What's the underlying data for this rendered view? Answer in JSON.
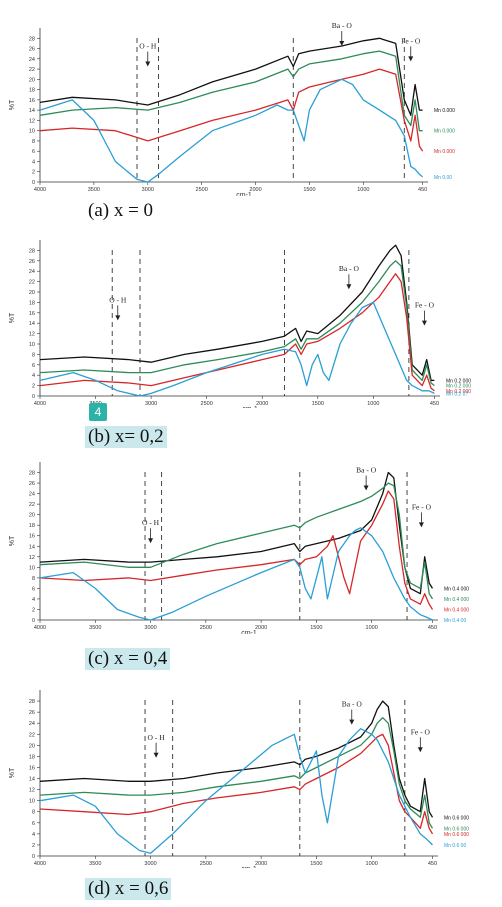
{
  "chart_data": [
    {
      "type": "line",
      "caption": "(a) x = 0",
      "caption_highlight": false,
      "ylabel": "%T",
      "xlabel": "cm-1",
      "xlim": [
        4000,
        400
      ],
      "ylim": [
        0,
        30
      ],
      "yticks": [
        0,
        2,
        4,
        6,
        8,
        10,
        12,
        14,
        16,
        18,
        20,
        22,
        24,
        26,
        28
      ],
      "xticks": [
        4000,
        3500,
        3000,
        2500,
        2000,
        1500,
        1000,
        450
      ],
      "annotations": [
        {
          "text": "O - H",
          "x": 3000,
          "y": 26
        },
        {
          "text": "Ba - O",
          "x": 1200,
          "y": 30
        },
        {
          "text": "Fe - O",
          "x": 560,
          "y": 27
        }
      ],
      "dashed_lines": [
        3100,
        2900,
        1650,
        620
      ],
      "series": [
        {
          "name": "Mn 0.000",
          "color": "#111111",
          "x": [
            4000,
            3700,
            3300,
            3000,
            2700,
            2400,
            2000,
            1700,
            1650,
            1600,
            1500,
            1200,
            1000,
            850,
            700,
            620,
            560,
            520,
            480,
            450
          ],
          "y": [
            15.5,
            16.5,
            16,
            15,
            17,
            19.5,
            22,
            24.5,
            22.5,
            25,
            25.5,
            26.5,
            27.5,
            28,
            27,
            16,
            13,
            19,
            14,
            14
          ]
        },
        {
          "name": "Mn 0.000",
          "color": "#2e8b57",
          "x": [
            4000,
            3700,
            3300,
            3000,
            2700,
            2400,
            2000,
            1700,
            1650,
            1600,
            1500,
            1200,
            1000,
            850,
            700,
            620,
            560,
            520,
            480,
            450
          ],
          "y": [
            13,
            14,
            14.5,
            14,
            15.5,
            17.5,
            19.5,
            22,
            20.5,
            22,
            23,
            24,
            25,
            25.5,
            24.5,
            13,
            11,
            16,
            10,
            10
          ]
        },
        {
          "name": "Mn 0.000",
          "color": "#d62728",
          "x": [
            4000,
            3700,
            3300,
            3000,
            2700,
            2400,
            2000,
            1700,
            1650,
            1600,
            1500,
            1200,
            1000,
            850,
            700,
            620,
            560,
            520,
            480,
            450
          ],
          "y": [
            10,
            10.5,
            10,
            8,
            10,
            12,
            14,
            16,
            14,
            17.5,
            18.5,
            20,
            21,
            22,
            21,
            12,
            8,
            13,
            7,
            6
          ]
        },
        {
          "name": "Mn 0.00",
          "color": "#2a9fd6",
          "x": [
            4000,
            3700,
            3500,
            3300,
            3100,
            3000,
            2900,
            2700,
            2400,
            2000,
            1800,
            1700,
            1650,
            1600,
            1550,
            1500,
            1400,
            1200,
            1100,
            1000,
            850,
            700,
            620,
            560,
            520,
            480,
            450
          ],
          "y": [
            14,
            16,
            12,
            4,
            0.5,
            0,
            1.5,
            5,
            10,
            13,
            15,
            14,
            14,
            11,
            8,
            14,
            18,
            20,
            19,
            16,
            14,
            12,
            9,
            3,
            2.5,
            1.5,
            1
          ]
        }
      ]
    },
    {
      "type": "line",
      "caption": "(b) x= 0,2",
      "caption_highlight": true,
      "badge": "4",
      "ylabel": "%T",
      "xlabel": "cm-1",
      "xlim": [
        4000,
        400
      ],
      "ylim": [
        0,
        30
      ],
      "yticks": [
        0,
        2,
        4,
        6,
        8,
        10,
        12,
        14,
        16,
        18,
        20,
        22,
        24,
        26,
        28
      ],
      "xticks": [
        4000,
        3500,
        3000,
        2500,
        2000,
        1500,
        1000,
        450
      ],
      "annotations": [
        {
          "text": "O - H",
          "x": 3300,
          "y": 18
        },
        {
          "text": "Ba - O",
          "x": 1220,
          "y": 24
        },
        {
          "text": "Fe - O",
          "x": 540,
          "y": 17
        }
      ],
      "dashed_lines": [
        3350,
        3100,
        1800,
        680
      ],
      "series": [
        {
          "name": "Mn 0.2 000",
          "color": "#111111",
          "x": [
            4000,
            3600,
            3200,
            3000,
            2700,
            2400,
            2000,
            1800,
            1700,
            1650,
            1600,
            1500,
            1300,
            1100,
            950,
            850,
            800,
            750,
            700,
            650,
            560,
            520,
            480,
            450
          ],
          "y": [
            7,
            7.5,
            7,
            6.5,
            8,
            9,
            10.5,
            11.5,
            13,
            10.5,
            12.5,
            12,
            15.5,
            20,
            25,
            28,
            29,
            27,
            18,
            6,
            4,
            7,
            3,
            3
          ]
        },
        {
          "name": "Mn 0.2 000",
          "color": "#2e8b57",
          "x": [
            4000,
            3600,
            3200,
            3000,
            2700,
            2400,
            2000,
            1800,
            1700,
            1650,
            1600,
            1500,
            1300,
            1100,
            950,
            850,
            800,
            750,
            700,
            650,
            560,
            520,
            480,
            450
          ],
          "y": [
            4.5,
            5,
            4.5,
            4.5,
            6,
            7,
            8.5,
            9.5,
            11,
            9,
            11,
            11,
            14,
            18,
            22,
            25,
            26,
            25,
            17,
            5,
            3,
            6,
            2.5,
            2
          ]
        },
        {
          "name": "Mn 0.2 000",
          "color": "#d62728",
          "x": [
            4000,
            3600,
            3200,
            3000,
            2700,
            2400,
            2000,
            1800,
            1700,
            1650,
            1600,
            1500,
            1300,
            1100,
            950,
            850,
            800,
            750,
            700,
            650,
            560,
            520,
            480,
            450
          ],
          "y": [
            2,
            3,
            2.5,
            2,
            3.5,
            5,
            7,
            8,
            10,
            8,
            10,
            10.5,
            13,
            16,
            19,
            22,
            23.5,
            22,
            15,
            4,
            2,
            4,
            1.5,
            1
          ]
        },
        {
          "name": "Mn 0.2 0?",
          "color": "#2a9fd6",
          "x": [
            4000,
            3700,
            3500,
            3300,
            3100,
            3000,
            2800,
            2500,
            2000,
            1800,
            1700,
            1650,
            1600,
            1550,
            1500,
            1450,
            1400,
            1300,
            1200,
            1100,
            1000,
            900,
            800,
            750,
            700,
            650,
            560,
            500,
            450
          ],
          "y": [
            3,
            4.5,
            3,
            1,
            0,
            0.5,
            2,
            4.5,
            8,
            9,
            8.5,
            6,
            2,
            6,
            8,
            4.5,
            3,
            10,
            14,
            17,
            18,
            13,
            8,
            5.5,
            3,
            2,
            1,
            1,
            0.5
          ]
        }
      ]
    },
    {
      "type": "line",
      "caption": "(c) x = 0,4",
      "caption_highlight": true,
      "ylabel": "%T",
      "xlabel": "cm-1",
      "xlim": [
        4000,
        400
      ],
      "ylim": [
        0,
        30
      ],
      "yticks": [
        0,
        2,
        4,
        6,
        8,
        10,
        12,
        14,
        16,
        18,
        20,
        22,
        24,
        26,
        28
      ],
      "xticks": [
        4000,
        3500,
        3000,
        2500,
        2000,
        1500,
        1000,
        450
      ],
      "annotations": [
        {
          "text": "O - H",
          "x": 3000,
          "y": 18
        },
        {
          "text": "Ba - O",
          "x": 1050,
          "y": 28
        },
        {
          "text": "Fe - O",
          "x": 550,
          "y": 21
        }
      ],
      "dashed_lines": [
        3050,
        2900,
        1650,
        680
      ],
      "series": [
        {
          "name": "Mn 0.4 000",
          "color": "#111111",
          "x": [
            4000,
            3600,
            3200,
            3000,
            2700,
            2400,
            2000,
            1700,
            1650,
            1600,
            1500,
            1300,
            1100,
            1000,
            900,
            850,
            800,
            750,
            700,
            650,
            560,
            520,
            480,
            450
          ],
          "y": [
            11,
            11.5,
            11,
            11,
            11.5,
            12,
            13,
            14.5,
            13,
            14,
            14.5,
            15.5,
            17,
            19,
            24,
            28,
            27,
            18,
            10,
            6,
            5,
            12,
            7,
            6
          ]
        },
        {
          "name": "Mn 0.4 000",
          "color": "#2e8b57",
          "x": [
            4000,
            3600,
            3200,
            3000,
            2700,
            2400,
            2000,
            1700,
            1650,
            1600,
            1500,
            1300,
            1100,
            1000,
            900,
            850,
            800,
            750,
            700,
            650,
            560,
            520,
            480,
            450
          ],
          "y": [
            10.5,
            11,
            10,
            10,
            12.5,
            14.5,
            16.5,
            18,
            17.5,
            18.5,
            19.5,
            21,
            22.5,
            23.5,
            25,
            26,
            25.5,
            20,
            10,
            7,
            6,
            11,
            5,
            4
          ]
        },
        {
          "name": "Mn 0.4 000",
          "color": "#d62728",
          "x": [
            4000,
            3600,
            3200,
            3000,
            2700,
            2400,
            2000,
            1700,
            1650,
            1600,
            1500,
            1400,
            1350,
            1300,
            1250,
            1200,
            1150,
            1100,
            1000,
            900,
            850,
            800,
            750,
            700,
            650,
            560,
            520,
            480,
            450
          ],
          "y": [
            8,
            7.5,
            8,
            7.5,
            8.5,
            9.5,
            10.5,
            11.5,
            10.5,
            11.5,
            12,
            14,
            16,
            12,
            8,
            5,
            10,
            15,
            18,
            22,
            24.5,
            23,
            14,
            7,
            4,
            3,
            5,
            3,
            2
          ]
        },
        {
          "name": "Mn 0.4 00",
          "color": "#2a9fd6",
          "x": [
            4000,
            3700,
            3500,
            3300,
            3100,
            3000,
            2800,
            2500,
            2000,
            1700,
            1650,
            1600,
            1550,
            1500,
            1450,
            1400,
            1300,
            1200,
            1150,
            1100,
            1000,
            900,
            800,
            700,
            650,
            560,
            500,
            450
          ],
          "y": [
            8,
            9,
            6,
            2,
            0.5,
            0,
            1.5,
            4.5,
            9,
            11.5,
            10,
            6,
            4,
            8,
            12,
            4,
            13,
            16,
            17,
            17.5,
            16,
            13,
            8,
            4,
            2.5,
            1,
            0.5,
            0
          ]
        }
      ]
    },
    {
      "type": "line",
      "caption": "(d) x = 0,6",
      "caption_highlight": true,
      "ylabel": "%T",
      "xlabel": "cm-1",
      "xlim": [
        4000,
        400
      ],
      "ylim": [
        0,
        30
      ],
      "yticks": [
        0,
        2,
        4,
        6,
        8,
        10,
        12,
        14,
        16,
        18,
        20,
        22,
        24,
        26,
        28
      ],
      "xticks": [
        4000,
        3500,
        3000,
        2500,
        2000,
        1500,
        1000,
        450
      ],
      "annotations": [
        {
          "text": "O - H",
          "x": 2950,
          "y": 21
        },
        {
          "text": "Ba - O",
          "x": 1180,
          "y": 27
        },
        {
          "text": "Fe - O",
          "x": 560,
          "y": 22
        }
      ],
      "dashed_lines": [
        3050,
        2800,
        1650,
        700
      ],
      "series": [
        {
          "name": "Mn 0.6 000",
          "color": "#111111",
          "x": [
            4000,
            3600,
            3200,
            3000,
            2700,
            2400,
            2000,
            1700,
            1650,
            1600,
            1500,
            1300,
            1100,
            1000,
            950,
            900,
            850,
            800,
            750,
            700,
            650,
            560,
            520,
            480,
            450
          ],
          "y": [
            13.5,
            14,
            13.5,
            13.5,
            14,
            15,
            16,
            17,
            16.5,
            17.5,
            18,
            19.5,
            21.5,
            24,
            26.5,
            28,
            27,
            20,
            14,
            11,
            9,
            8,
            14,
            8,
            7
          ]
        },
        {
          "name": "Mn 0.6 000",
          "color": "#2e8b57",
          "x": [
            4000,
            3600,
            3200,
            3000,
            2700,
            2400,
            2000,
            1700,
            1650,
            1600,
            1500,
            1300,
            1100,
            1000,
            950,
            900,
            850,
            800,
            750,
            700,
            650,
            560,
            520,
            480,
            450
          ],
          "y": [
            11,
            11.5,
            11,
            11,
            11.5,
            12.5,
            13.5,
            14.5,
            14,
            15,
            16,
            18,
            20,
            22,
            24,
            25,
            24,
            19,
            13,
            10,
            8.5,
            7,
            11,
            6,
            5
          ]
        },
        {
          "name": "Mn 0.6 000",
          "color": "#d62728",
          "x": [
            4000,
            3600,
            3200,
            3000,
            2700,
            2400,
            2000,
            1700,
            1650,
            1600,
            1500,
            1300,
            1100,
            1000,
            950,
            900,
            850,
            800,
            750,
            700,
            650,
            560,
            520,
            480,
            450
          ],
          "y": [
            8.5,
            8,
            7.5,
            8,
            9.5,
            10.5,
            11.5,
            12.5,
            12,
            13,
            14,
            16,
            18.5,
            20.5,
            21.5,
            22,
            20,
            15,
            10,
            8,
            7,
            5,
            8,
            5,
            4
          ]
        },
        {
          "name": "Mn 0.6 00",
          "color": "#2a9fd6",
          "x": [
            4000,
            3700,
            3500,
            3300,
            3100,
            3000,
            2800,
            2500,
            2200,
            1900,
            1700,
            1650,
            1600,
            1550,
            1500,
            1450,
            1400,
            1300,
            1200,
            1100,
            1000,
            950,
            900,
            850,
            800,
            750,
            700,
            650,
            560,
            500,
            450
          ],
          "y": [
            10,
            11,
            9,
            4,
            1,
            0.5,
            4,
            10,
            15,
            20,
            22,
            18,
            15,
            17,
            19,
            11,
            6,
            18,
            21,
            23,
            22,
            21,
            19,
            17,
            14,
            11,
            9,
            7,
            4,
            3,
            2
          ]
        }
      ]
    }
  ]
}
